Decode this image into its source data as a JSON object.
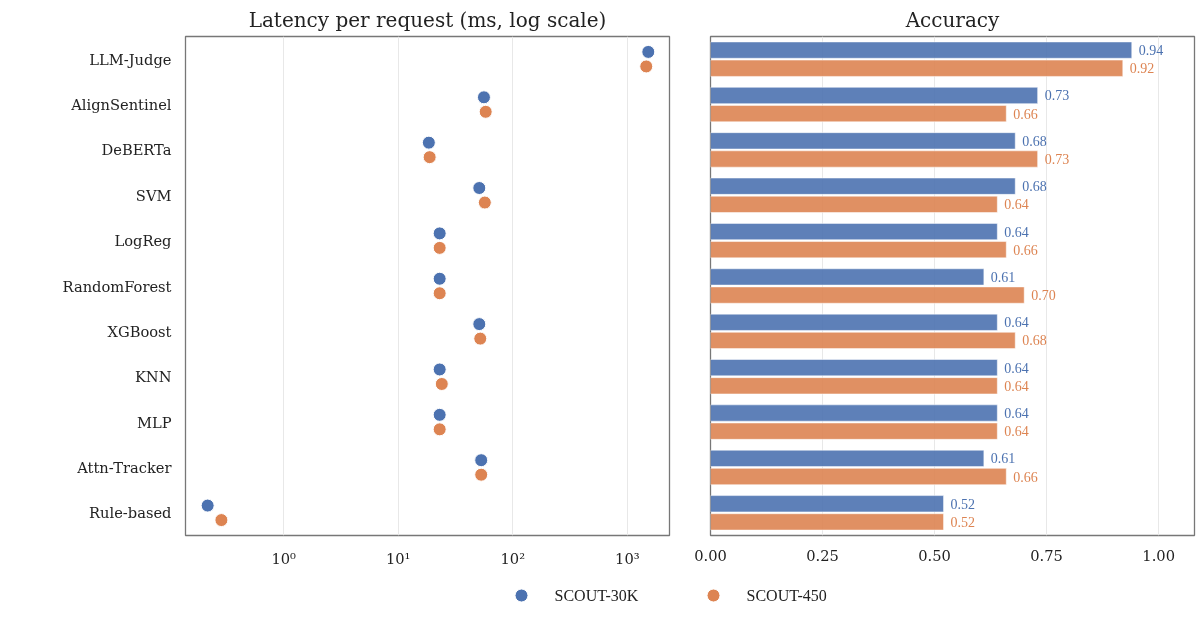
{
  "chart_data": [
    {
      "type": "scatter",
      "title": "Latency per request (ms, log scale)",
      "orientation": "horizontal",
      "log": "x",
      "grid": "x",
      "marker": "circle",
      "categories": [
        "LLM-Judge",
        "AlignSentinel",
        "DeBERTa",
        "SVM",
        "LogReg",
        "RandomForest",
        "XGBoost",
        "KNN",
        "MLP",
        "Attn-Tracker",
        "Rule-based"
      ],
      "xlim": [
        0.139,
        2333
      ],
      "xticks": [
        {
          "value": 1,
          "label": "10⁰"
        },
        {
          "value": 10,
          "label": "10¹"
        },
        {
          "value": 100,
          "label": "10²"
        },
        {
          "value": 1000,
          "label": "10³"
        }
      ],
      "series": [
        {
          "color": "#4c72b0",
          "values": [
            1523,
            56,
            18.5,
            51,
            23,
            23,
            51,
            23,
            23,
            53,
            0.217
          ]
        },
        {
          "color": "#dd8452",
          "values": [
            1462,
            58,
            18.8,
            57,
            23,
            23,
            52,
            24,
            23,
            53,
            0.286
          ]
        }
      ]
    },
    {
      "type": "bar",
      "title": "Accuracy",
      "orientation": "horizontal",
      "grid": "x",
      "tick_labels": "x",
      "legend": "bottom",
      "marker": "circle",
      "categories": [
        null,
        null,
        null,
        null,
        null,
        null,
        null,
        null,
        null,
        null,
        null
      ],
      "xlim": [
        0,
        1.08
      ],
      "xticks": [
        {
          "value": 0,
          "label": "0.00"
        },
        {
          "value": 0.25,
          "label": "0.25"
        },
        {
          "value": 0.5,
          "label": "0.50"
        },
        {
          "value": 0.75,
          "label": "0.75"
        },
        {
          "value": 1,
          "label": "1.00"
        }
      ],
      "series": [
        {
          "name": "SCOUT-30K",
          "color": "#4c72b0",
          "values": [
            0.94,
            0.73,
            0.68,
            0.68,
            0.64,
            0.61,
            0.64,
            0.64,
            0.64,
            0.61,
            0.52
          ],
          "value_labels": [
            "0.94",
            "0.73",
            "0.68",
            "0.68",
            "0.64",
            "0.61",
            "0.64",
            "0.64",
            "0.64",
            "0.61",
            "0.52"
          ]
        },
        {
          "name": "SCOUT-450",
          "color": "#dd8452",
          "values": [
            0.92,
            0.66,
            0.73,
            0.64,
            0.66,
            0.7,
            0.68,
            0.64,
            0.64,
            0.66,
            0.52
          ],
          "value_labels": [
            "0.92",
            "0.66",
            "0.73",
            "0.64",
            "0.66",
            "0.70",
            "0.68",
            "0.64",
            "0.64",
            "0.66",
            "0.52"
          ]
        }
      ]
    }
  ]
}
